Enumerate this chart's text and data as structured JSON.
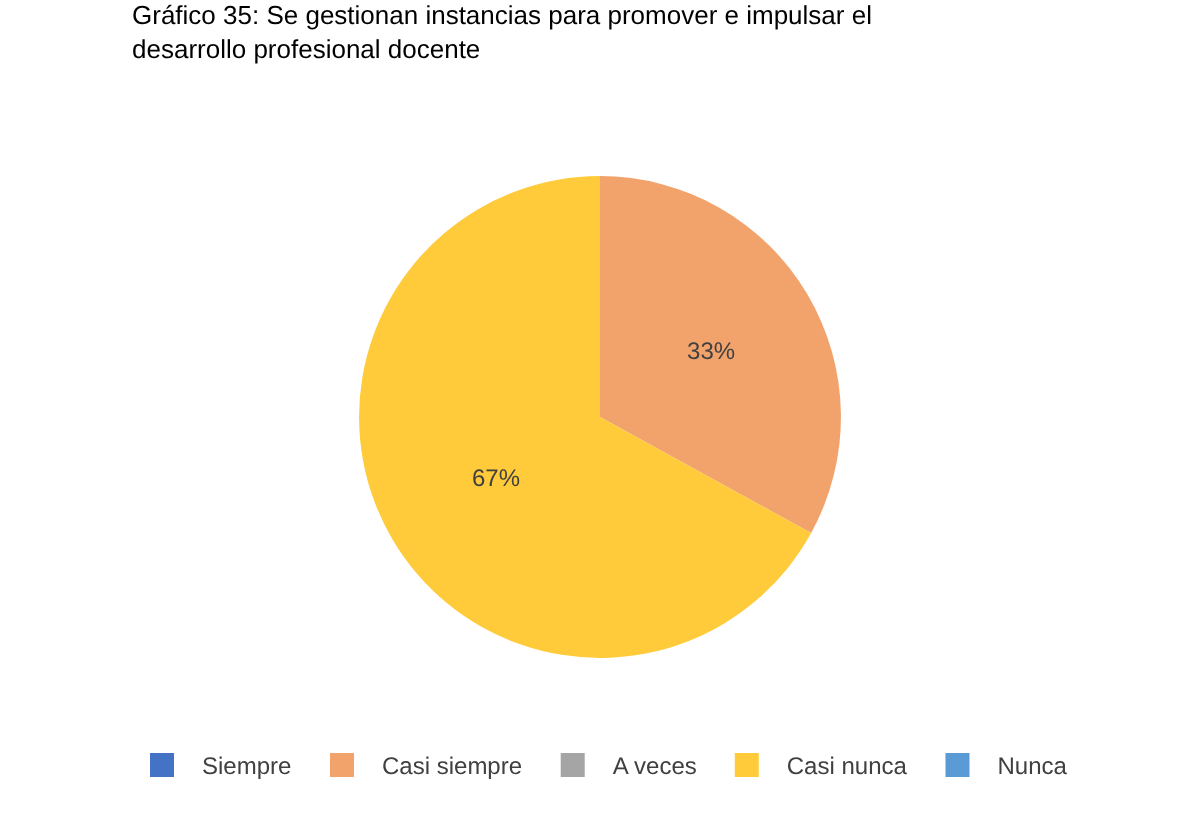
{
  "chart_data": {
    "type": "pie",
    "title": "Gráfico 35: Se gestionan instancias para promover e impulsar el desarrollo profesional docente",
    "categories": [
      "Siempre",
      "Casi siempre",
      "A veces",
      "Casi nunca",
      "Nunca"
    ],
    "values": [
      0,
      33,
      0,
      67,
      0
    ],
    "value_labels": [
      null,
      "33%",
      null,
      "67%",
      null
    ],
    "colors": [
      "#4472c4",
      "#f2a36c",
      "#a5a5a5",
      "#ffcb3a",
      "#5b9bd5"
    ],
    "legend": "bottom"
  }
}
